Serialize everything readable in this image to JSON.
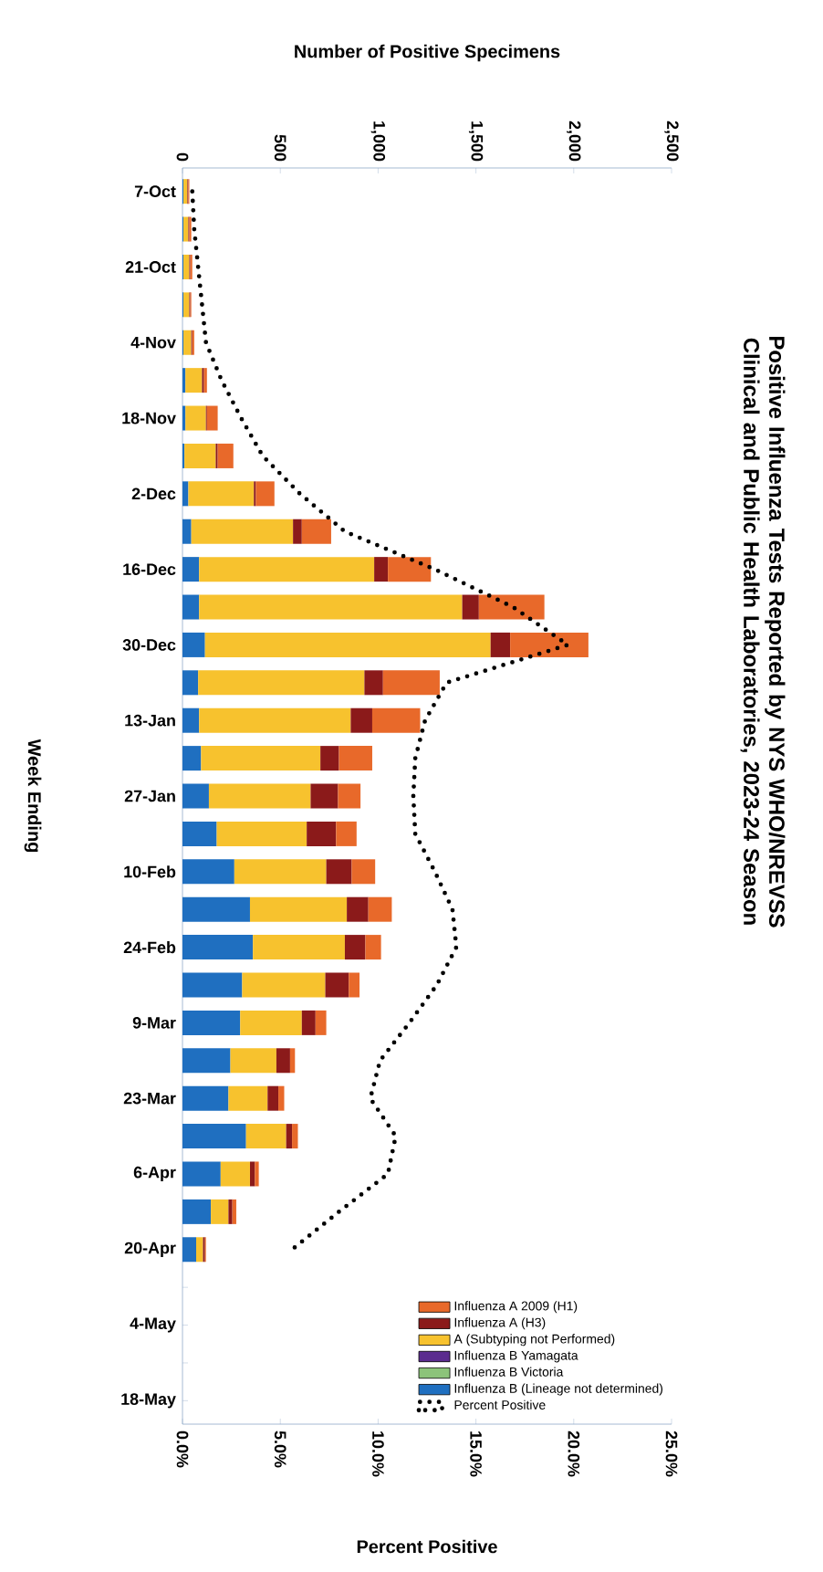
{
  "chart_data": {
    "type": "bar",
    "stacked": true,
    "orientation": "horizontal",
    "title": "Positive Influenza Tests Reported by NYS WHO/NREVSS Clinical and Public Health Laboratories, 2023-24 Season",
    "ylabel": "Week Ending",
    "xlabel": "Number of Positive Specimens",
    "x2label": "Percent Positive",
    "categories": [
      "7-Oct",
      null,
      "21-Oct",
      null,
      "4-Nov",
      null,
      "18-Nov",
      null,
      "2-Dec",
      null,
      "16-Dec",
      null,
      "30-Dec",
      null,
      "13-Jan",
      null,
      "27-Jan",
      null,
      "10-Feb",
      null,
      "24-Feb",
      null,
      "9-Mar",
      null,
      "23-Mar",
      null,
      "6-Apr",
      null,
      "20-Apr",
      null,
      "4-May",
      null,
      "18-May"
    ],
    "xlim": [
      0,
      2500
    ],
    "xticks": [
      {
        "value": 0,
        "label": "0"
      },
      {
        "value": 500,
        "label": "500"
      },
      {
        "value": 1000,
        "label": "1,000"
      },
      {
        "value": 1500,
        "label": "1,500"
      },
      {
        "value": 2000,
        "label": "2,000"
      },
      {
        "value": 2500,
        "label": "2,500"
      }
    ],
    "x2lim": [
      0,
      25
    ],
    "x2ticks": [
      {
        "value": 0,
        "label": "0.0%"
      },
      {
        "value": 5,
        "label": "5.0%"
      },
      {
        "value": 10,
        "label": "10.0%"
      },
      {
        "value": 15,
        "label": "15.0%"
      },
      {
        "value": 20,
        "label": "20.0%"
      },
      {
        "value": 25,
        "label": "25.0%"
      }
    ],
    "legend": "bottom right",
    "grid": false,
    "series": [
      {
        "name": "Influenza B (Lineage not determined)",
        "color": "#1f6fc0",
        "values": [
          5,
          5,
          5,
          5,
          5,
          15,
          15,
          10,
          30,
          45,
          85,
          85,
          115,
          80,
          85,
          95,
          135,
          175,
          265,
          345,
          360,
          305,
          295,
          245,
          235,
          325,
          195,
          145,
          70,
          null,
          null,
          null,
          null
        ]
      },
      {
        "name": "Influenza B Victoria",
        "color": "#8cc37a",
        "values": [
          0,
          0,
          0,
          0,
          0,
          0,
          0,
          0,
          0,
          0,
          0,
          0,
          0,
          0,
          0,
          0,
          0,
          0,
          0,
          0,
          0,
          0,
          0,
          0,
          0,
          0,
          0,
          0,
          0,
          null,
          null,
          null,
          null
        ]
      },
      {
        "name": "Influenza B Yamagata",
        "color": "#5b2c8f",
        "values": [
          0,
          0,
          0,
          0,
          0,
          0,
          0,
          0,
          0,
          0,
          0,
          0,
          0,
          0,
          0,
          0,
          0,
          0,
          0,
          0,
          0,
          0,
          0,
          0,
          0,
          0,
          0,
          0,
          0,
          null,
          null,
          null,
          null
        ]
      },
      {
        "name": "A (Subtyping not Performed)",
        "color": "#f7c22e",
        "values": [
          20,
          25,
          30,
          30,
          40,
          85,
          105,
          160,
          335,
          520,
          895,
          1345,
          1460,
          850,
          775,
          610,
          520,
          460,
          470,
          495,
          470,
          425,
          315,
          235,
          200,
          205,
          150,
          90,
          35,
          null,
          null,
          null,
          null
        ]
      },
      {
        "name": "Influenza A (H3)",
        "color": "#8b1a1a",
        "values": [
          5,
          5,
          5,
          5,
          5,
          10,
          5,
          10,
          10,
          45,
          70,
          85,
          100,
          95,
          110,
          95,
          140,
          150,
          130,
          110,
          105,
          120,
          70,
          70,
          55,
          30,
          25,
          20,
          10,
          null,
          null,
          null,
          null
        ]
      },
      {
        "name": "Influenza A 2009 (H1)",
        "color": "#e8692a",
        "values": [
          5,
          10,
          10,
          5,
          10,
          15,
          55,
          80,
          95,
          150,
          220,
          335,
          400,
          290,
          245,
          170,
          115,
          105,
          120,
          120,
          80,
          55,
          55,
          25,
          30,
          30,
          20,
          20,
          5,
          null,
          null,
          null,
          null
        ]
      },
      {
        "name": "Percent Positive",
        "type": "line",
        "axis": "x2",
        "color": "#000000",
        "line_style": "dotted",
        "marker": "none",
        "values": [
          0.5,
          0.6,
          0.8,
          1.0,
          1.2,
          2.0,
          3.0,
          4.1,
          6.0,
          8.3,
          12.9,
          16.9,
          19.7,
          13.5,
          12.4,
          11.9,
          11.8,
          11.9,
          12.9,
          13.8,
          14.0,
          13.0,
          11.6,
          10.1,
          9.6,
          10.9,
          10.5,
          8.0,
          5.6,
          null,
          null,
          null,
          null
        ]
      }
    ]
  }
}
